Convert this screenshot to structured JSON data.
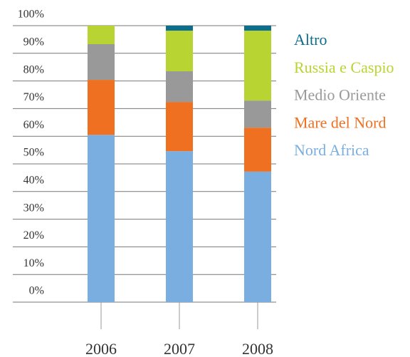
{
  "chart_data": {
    "type": "stacked_bar",
    "categories": [
      "2006",
      "2007",
      "2008"
    ],
    "series": [
      {
        "name": "Nord Africa",
        "color": "#7aaee0",
        "values": [
          60.5,
          54.6,
          47.2
        ]
      },
      {
        "name": "Mare del Nord",
        "color": "#f07022",
        "values": [
          19.9,
          17.8,
          15.9
        ]
      },
      {
        "name": "Medio Oriente",
        "color": "#999999",
        "values": [
          12.9,
          11.1,
          9.8
        ]
      },
      {
        "name": "Russia e Caspio",
        "color": "#b8d432",
        "values": [
          6.7,
          14.7,
          25.3
        ]
      },
      {
        "name": "Altro",
        "color": "#0d6d8c",
        "values": [
          0,
          1.8,
          1.8
        ]
      }
    ],
    "ylim": [
      0,
      100
    ],
    "yticks": [
      {
        "value": 0,
        "label": "0%"
      },
      {
        "value": 10,
        "label": "10%"
      },
      {
        "value": 20,
        "label": "20%"
      },
      {
        "value": 30,
        "label": "30%"
      },
      {
        "value": 40,
        "label": "40%"
      },
      {
        "value": 50,
        "label": "50%"
      },
      {
        "value": 60,
        "label": "60%"
      },
      {
        "value": 70,
        "label": "70%"
      },
      {
        "value": 80,
        "label": "80%"
      },
      {
        "value": 90,
        "label": "90%"
      },
      {
        "value": 100,
        "label": "100%"
      }
    ],
    "grid": true,
    "legend": "right"
  }
}
